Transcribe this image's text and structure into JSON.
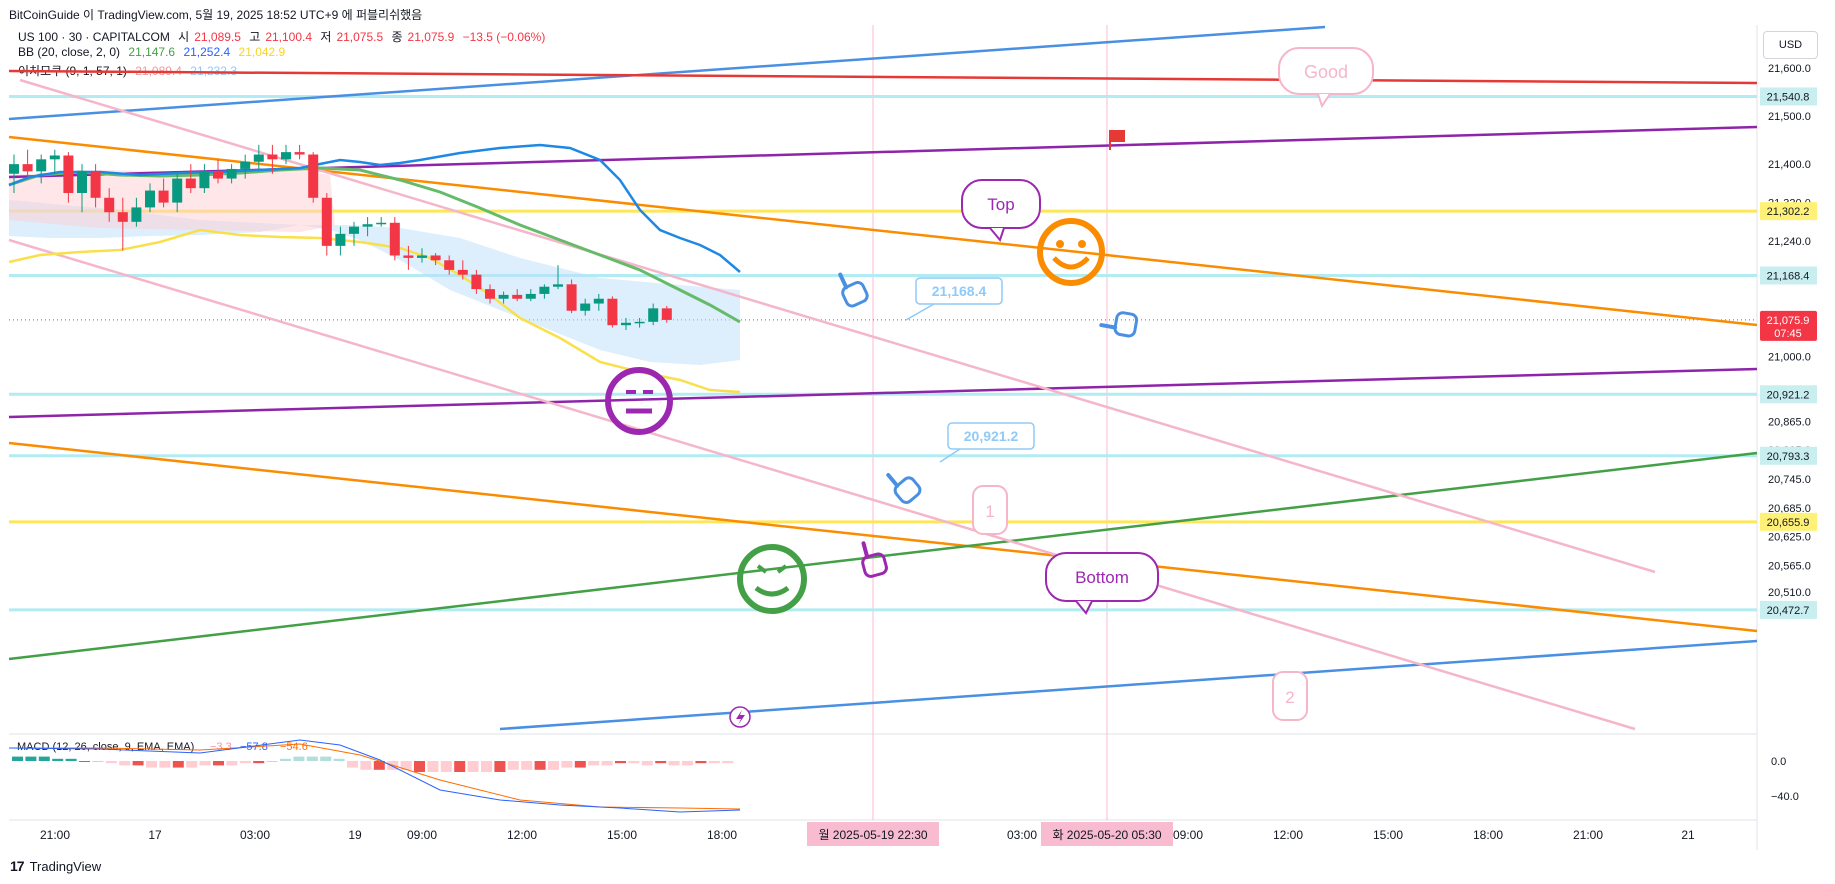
{
  "header": {
    "publish_line": "BitCoinGuide 이 TradingView.com, 5월 19, 2025 18:52 UTC+9 에 퍼블리쉬했음",
    "symbol_text": "US 100 · 30 · CAPITALCOM",
    "ohlc": [
      {
        "label": "시",
        "value": "21,089.5"
      },
      {
        "label": "고",
        "value": "21,100.4"
      },
      {
        "label": "저",
        "value": "21,075.5"
      },
      {
        "label": "종",
        "value": "21,075.9"
      }
    ],
    "change": "−13.5 (−0.06%)",
    "bb_label": "BB (20, close, 2, 0)",
    "bb_values": [
      "21,147.6",
      "21,252.4",
      "21,042.9"
    ],
    "ichimoku_label": "이치모쿠 (9, 1, 57, 1)",
    "ichimoku_values": [
      "21,089.4",
      "21,232.3"
    ]
  },
  "currency_button": "USD",
  "price_axis": {
    "ticks": [
      "21,600.0",
      "21,500.0",
      "21,400.0",
      "21,320.0",
      "21,240.0",
      "21,000.0",
      "20,865.0",
      "20,805.0",
      "20,745.0",
      "20,685.0",
      "20,625.0",
      "20,565.0",
      "20,510.0"
    ],
    "level_labels": [
      {
        "value": "21,540.8",
        "color": "#c9eef0"
      },
      {
        "value": "21,302.2",
        "color": "#fff176"
      },
      {
        "value": "21,168.4",
        "color": "#c9eef0"
      },
      {
        "value": "20,921.2",
        "color": "#c9eef0"
      },
      {
        "value": "20,793.3",
        "color": "#c9eef0"
      },
      {
        "value": "20,655.9",
        "color": "#fff176"
      },
      {
        "value": "20,472.7",
        "color": "#c9eef0"
      }
    ],
    "current_price": "21,075.9",
    "countdown": "07:45"
  },
  "macd": {
    "label": "MACD (12, 26, close, 9, EMA, EMA)",
    "values": [
      "−3.3",
      "−57.8",
      "−54.6"
    ],
    "ticks": [
      "0.0",
      "−40.0"
    ]
  },
  "time_axis": {
    "labels": [
      "21:00",
      "17",
      "03:00",
      "19",
      "09:00",
      "12:00",
      "15:00",
      "18:00",
      "03:00",
      "09:00",
      "12:00",
      "15:00",
      "18:00",
      "21:00",
      "21"
    ],
    "highlight_1": "월 2025-05-19 22:30",
    "highlight_2": "화 2025-05-20 05:30"
  },
  "annotations": {
    "good": "Good",
    "top": "Top",
    "bottom": "Bottom",
    "callout_1": "21,168.4",
    "callout_2": "20,921.2",
    "num_1": "1",
    "num_2": "2"
  },
  "footer": {
    "brand": "TradingView"
  },
  "chart_data": {
    "type": "candlestick",
    "symbol": "US 100 · 30 · CAPITALCOM",
    "ylim": [
      20440,
      21660
    ],
    "horizontal_levels": [
      21540.8,
      21302.2,
      21168.4,
      20921.2,
      20793.3,
      20655.9,
      20472.7
    ],
    "current_price": 21075.9,
    "candles": [
      {
        "o": 21380,
        "h": 21420,
        "l": 21340,
        "c": 21400
      },
      {
        "o": 21400,
        "h": 21430,
        "l": 21370,
        "c": 21385
      },
      {
        "o": 21385,
        "h": 21420,
        "l": 21360,
        "c": 21410
      },
      {
        "o": 21410,
        "h": 21430,
        "l": 21380,
        "c": 21418
      },
      {
        "o": 21418,
        "h": 21425,
        "l": 21320,
        "c": 21340
      },
      {
        "o": 21340,
        "h": 21400,
        "l": 21300,
        "c": 21385
      },
      {
        "o": 21385,
        "h": 21400,
        "l": 21310,
        "c": 21330
      },
      {
        "o": 21330,
        "h": 21350,
        "l": 21280,
        "c": 21300
      },
      {
        "o": 21300,
        "h": 21330,
        "l": 21220,
        "c": 21280
      },
      {
        "o": 21280,
        "h": 21330,
        "l": 21270,
        "c": 21310
      },
      {
        "o": 21310,
        "h": 21360,
        "l": 21300,
        "c": 21345
      },
      {
        "o": 21345,
        "h": 21370,
        "l": 21310,
        "c": 21320
      },
      {
        "o": 21320,
        "h": 21380,
        "l": 21300,
        "c": 21370
      },
      {
        "o": 21370,
        "h": 21400,
        "l": 21340,
        "c": 21350
      },
      {
        "o": 21350,
        "h": 21400,
        "l": 21340,
        "c": 21385
      },
      {
        "o": 21385,
        "h": 21410,
        "l": 21360,
        "c": 21370
      },
      {
        "o": 21370,
        "h": 21400,
        "l": 21360,
        "c": 21390
      },
      {
        "o": 21390,
        "h": 21420,
        "l": 21370,
        "c": 21405
      },
      {
        "o": 21405,
        "h": 21440,
        "l": 21390,
        "c": 21420
      },
      {
        "o": 21420,
        "h": 21440,
        "l": 21380,
        "c": 21410
      },
      {
        "o": 21410,
        "h": 21440,
        "l": 21400,
        "c": 21425
      },
      {
        "o": 21425,
        "h": 21440,
        "l": 21410,
        "c": 21420
      },
      {
        "o": 21420,
        "h": 21425,
        "l": 21320,
        "c": 21330
      },
      {
        "o": 21330,
        "h": 21340,
        "l": 21210,
        "c": 21230
      },
      {
        "o": 21230,
        "h": 21270,
        "l": 21210,
        "c": 21255
      },
      {
        "o": 21255,
        "h": 21280,
        "l": 21230,
        "c": 21270
      },
      {
        "o": 21270,
        "h": 21290,
        "l": 21250,
        "c": 21275
      },
      {
        "o": 21275,
        "h": 21290,
        "l": 21270,
        "c": 21278
      },
      {
        "o": 21278,
        "h": 21290,
        "l": 21200,
        "c": 21210
      },
      {
        "o": 21210,
        "h": 21230,
        "l": 21180,
        "c": 21205
      },
      {
        "o": 21205,
        "h": 21225,
        "l": 21195,
        "c": 21210
      },
      {
        "o": 21210,
        "h": 21215,
        "l": 21190,
        "c": 21200
      },
      {
        "o": 21200,
        "h": 21210,
        "l": 21170,
        "c": 21180
      },
      {
        "o": 21180,
        "h": 21200,
        "l": 21160,
        "c": 21170
      },
      {
        "o": 21170,
        "h": 21180,
        "l": 21130,
        "c": 21140
      },
      {
        "o": 21140,
        "h": 21150,
        "l": 21110,
        "c": 21120
      },
      {
        "o": 21120,
        "h": 21135,
        "l": 21110,
        "c": 21128
      },
      {
        "o": 21128,
        "h": 21140,
        "l": 21115,
        "c": 21120
      },
      {
        "o": 21120,
        "h": 21140,
        "l": 21115,
        "c": 21130
      },
      {
        "o": 21130,
        "h": 21150,
        "l": 21120,
        "c": 21145
      },
      {
        "o": 21145,
        "h": 21190,
        "l": 21140,
        "c": 21150
      },
      {
        "o": 21150,
        "h": 21160,
        "l": 21090,
        "c": 21095
      },
      {
        "o": 21095,
        "h": 21120,
        "l": 21085,
        "c": 21110
      },
      {
        "o": 21110,
        "h": 21130,
        "l": 21095,
        "c": 21120
      },
      {
        "o": 21120,
        "h": 21125,
        "l": 21060,
        "c": 21065
      },
      {
        "o": 21065,
        "h": 21080,
        "l": 21055,
        "c": 21070
      },
      {
        "o": 21070,
        "h": 21080,
        "l": 21060,
        "c": 21072
      },
      {
        "o": 21072,
        "h": 21110,
        "l": 21065,
        "c": 21100
      },
      {
        "o": 21100,
        "h": 21105,
        "l": 21070,
        "c": 21076
      }
    ],
    "macd_histogram": [
      2,
      2,
      2,
      1,
      1,
      0,
      0,
      -1,
      -2,
      -2,
      -3,
      -3,
      -3,
      -3,
      -2,
      -2,
      -2,
      -1,
      -1,
      0,
      1,
      2,
      2,
      2,
      1,
      -3,
      -4,
      -4,
      -4,
      -4,
      -5,
      -5,
      -5,
      -5,
      -5,
      -5,
      -5,
      -4,
      -4,
      -4,
      -4,
      -3,
      -3,
      -2,
      -2,
      -1,
      -1,
      -2,
      -1,
      -2,
      -2,
      -1,
      -1,
      -1
    ]
  }
}
